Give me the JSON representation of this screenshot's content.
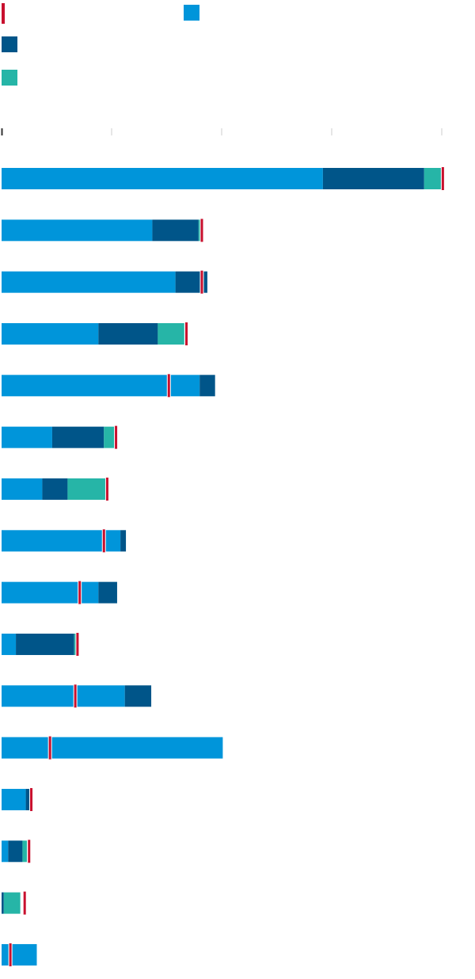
{
  "chart_data": {
    "type": "bar",
    "orientation": "horizontal",
    "stacked": true,
    "title": "",
    "xlabel": "",
    "ylabel": "",
    "categories": [
      "",
      "",
      "",
      "",
      "",
      "",
      "",
      "",
      "",
      "",
      "",
      "",
      "",
      "",
      "",
      ""
    ],
    "xlim": [
      0,
      4
    ],
    "ticks": [
      0,
      1,
      2,
      3,
      4
    ],
    "grid": false,
    "series": [
      {
        "color": "#0095da",
        "values": [
          2.92,
          1.37,
          1.58,
          0.88,
          1.8,
          0.46,
          0.37,
          1.08,
          0.88,
          0.13,
          1.12,
          2.01,
          0.22,
          0.06,
          0.0,
          0.32
        ]
      },
      {
        "color": "#005589",
        "values": [
          0.92,
          0.42,
          0.29,
          0.54,
          0.14,
          0.47,
          0.23,
          0.05,
          0.17,
          0.53,
          0.24,
          0.0,
          0.04,
          0.13,
          0.02,
          0.0
        ]
      },
      {
        "color": "#26b5a7",
        "values": [
          0.17,
          0.02,
          0.0,
          0.24,
          0.0,
          0.11,
          0.35,
          0.0,
          0.0,
          0.02,
          0.0,
          0.0,
          0.0,
          0.04,
          0.15,
          0.0
        ]
      }
    ],
    "markers": {
      "color": "#c8102e",
      "values": [
        4.01,
        1.82,
        1.82,
        1.68,
        1.52,
        1.04,
        0.96,
        0.93,
        0.71,
        0.69,
        0.67,
        0.44,
        0.27,
        0.25,
        0.21,
        0.08
      ]
    },
    "legend": {
      "placement": "top-left",
      "items": [
        {
          "kind": "marker",
          "color": "#c8102e"
        },
        {
          "kind": "swatch",
          "color": "#0095da"
        },
        {
          "kind": "swatch",
          "color": "#005589"
        },
        {
          "kind": "swatch",
          "color": "#26b5a7"
        }
      ]
    }
  }
}
